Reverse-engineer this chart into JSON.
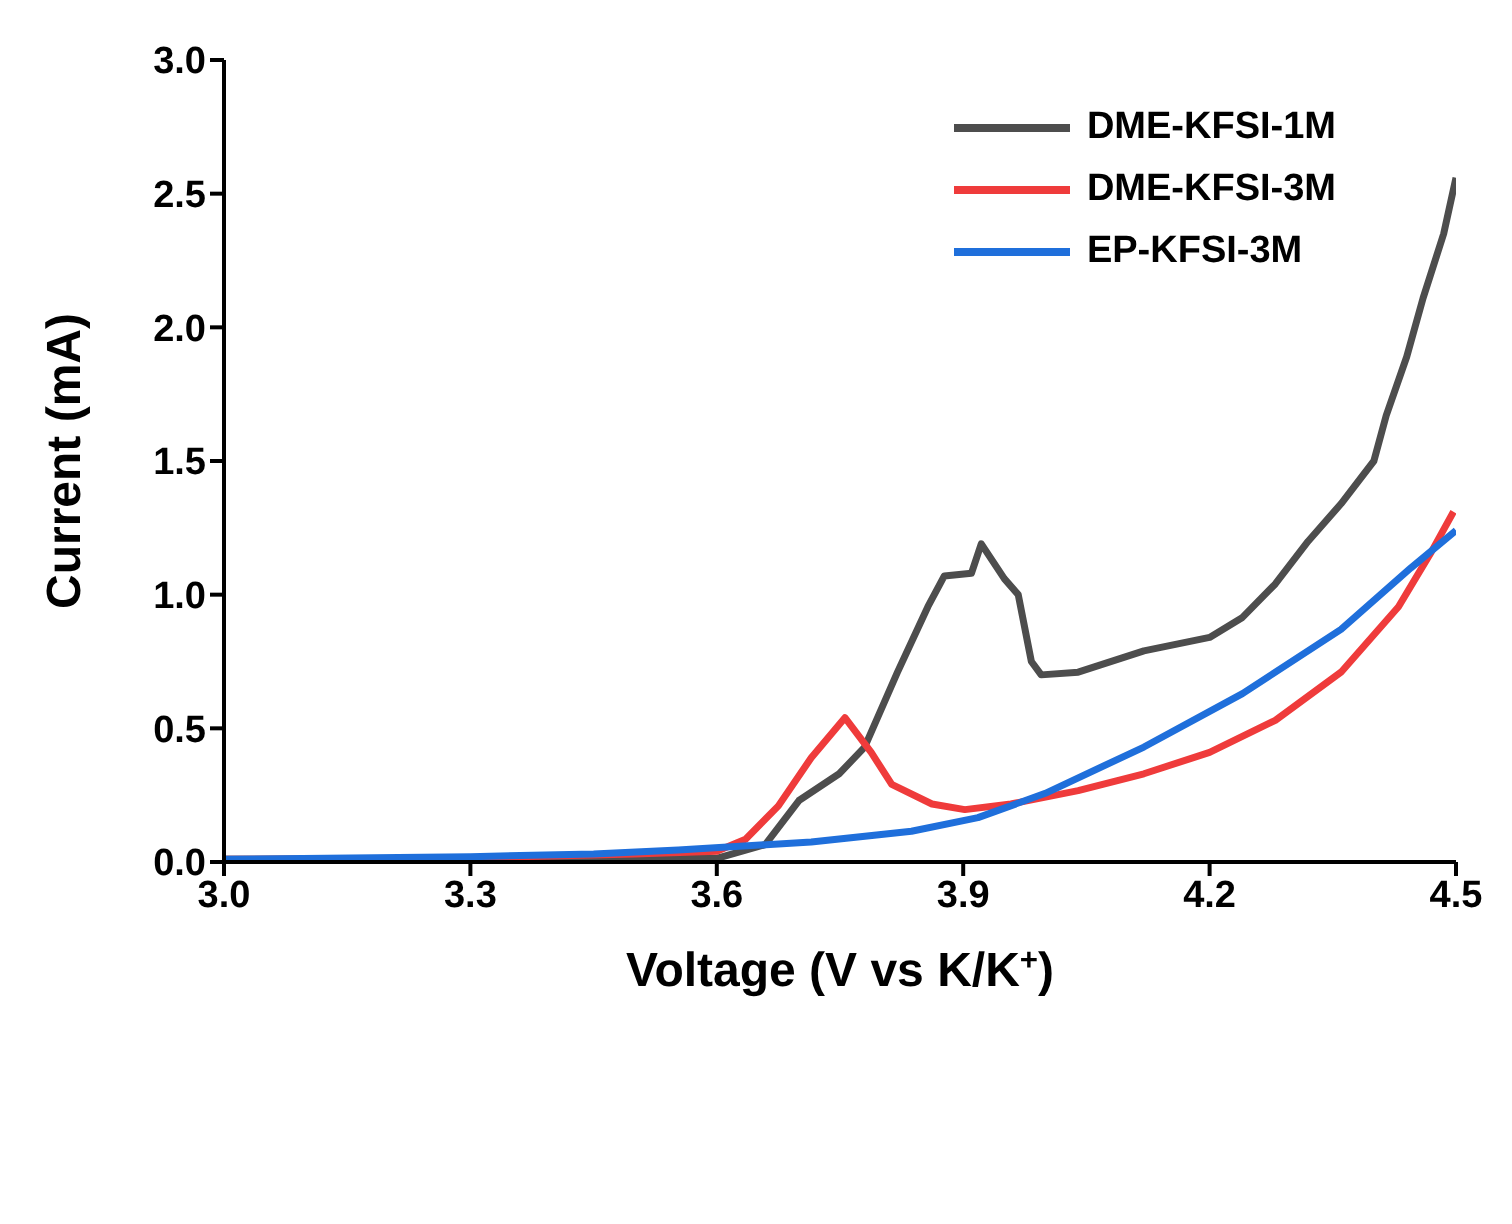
{
  "chart_data": {
    "type": "line",
    "xlabel": "Voltage (V vs K/K$^{+}$)",
    "ylabel": "Current (mA)",
    "xlim": [
      3.0,
      4.5
    ],
    "ylim": [
      0,
      3.0
    ],
    "xticks": [
      {
        "value": 3.0,
        "label": "3.0"
      },
      3.3,
      3.6,
      3.9,
      4.2,
      4.5
    ],
    "yticks": [
      {
        "value": 0,
        "label": "0.0"
      },
      0.5,
      {
        "value": 1,
        "label": "1.0"
      },
      1.5,
      {
        "value": 2,
        "label": "2.0"
      },
      2.5,
      {
        "value": 3,
        "label": "3.0"
      }
    ],
    "legend": "top right",
    "grid": false,
    "marker": "none",
    "line_style": "solid",
    "series": [
      {
        "name": "DME-KFSI-1M",
        "color": "#4d4d4d",
        "x": [
          3.0,
          3.3,
          3.5,
          3.6,
          3.659,
          3.7,
          3.749,
          3.78,
          3.82,
          3.857,
          3.877,
          3.91,
          3.922,
          3.95,
          3.967,
          3.983,
          3.995,
          4.04,
          4.12,
          4.2,
          4.24,
          4.28,
          4.32,
          4.36,
          4.4,
          4.415,
          4.44,
          4.46,
          4.485,
          4.5
        ],
        "values": [
          0.01,
          0.01,
          0.02,
          0.014,
          0.065,
          0.23,
          0.33,
          0.43,
          0.71,
          0.955,
          1.07,
          1.08,
          1.19,
          1.06,
          1.0,
          0.75,
          0.7,
          0.71,
          0.79,
          0.84,
          0.915,
          1.04,
          1.2,
          1.34,
          1.5,
          1.67,
          1.89,
          2.11,
          2.35,
          2.56
        ]
      },
      {
        "name": "DME-KFSI-3M",
        "color": "#ef3b3b",
        "x": [
          3.0,
          3.3,
          3.5,
          3.6,
          3.635,
          3.675,
          3.715,
          3.756,
          3.788,
          3.813,
          3.862,
          3.902,
          3.958,
          4.04,
          4.12,
          4.2,
          4.28,
          4.36,
          4.43,
          4.47,
          4.497
        ],
        "values": [
          0.01,
          0.015,
          0.03,
          0.04,
          0.085,
          0.21,
          0.39,
          0.54,
          0.41,
          0.29,
          0.217,
          0.196,
          0.217,
          0.267,
          0.33,
          0.41,
          0.53,
          0.71,
          0.955,
          1.16,
          1.31
        ]
      },
      {
        "name": "EP-KFSI-3M",
        "color": "#1f6fdb",
        "x": [
          3.0,
          3.3,
          3.45,
          3.553,
          3.715,
          3.837,
          3.918,
          4.0,
          4.12,
          4.24,
          4.36,
          4.445,
          4.5
        ],
        "values": [
          0.01,
          0.02,
          0.03,
          0.045,
          0.075,
          0.115,
          0.166,
          0.257,
          0.43,
          0.63,
          0.87,
          1.1,
          1.24
        ]
      }
    ]
  }
}
